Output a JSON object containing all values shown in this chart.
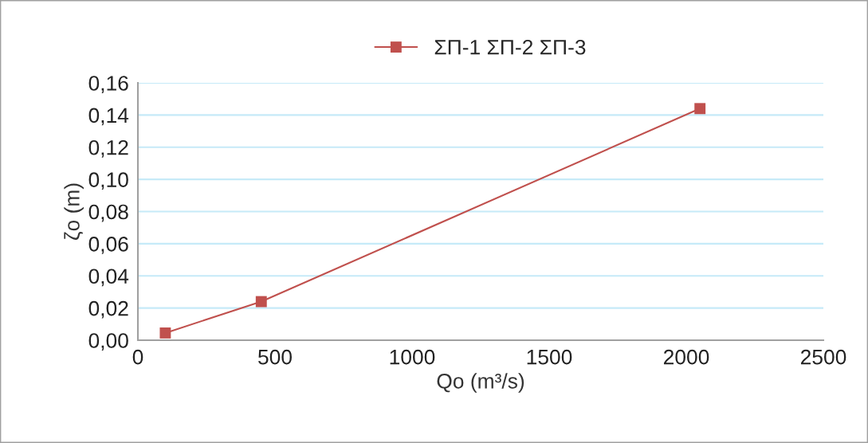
{
  "chart_data": {
    "type": "line",
    "xlabel": "Qo (m³/s)",
    "ylabel": "ζo (m)",
    "x": [
      100,
      450,
      2050
    ],
    "series": [
      {
        "name": "ΣΠ-1 ΣΠ-2 ΣΠ-3",
        "color": "#c0504d",
        "values": [
          0.0045,
          0.024,
          0.144
        ]
      }
    ],
    "xlim": [
      0,
      2500
    ],
    "xticks": [
      0,
      500,
      1000,
      1500,
      2000,
      2500
    ],
    "ylim": [
      0,
      0.16
    ],
    "yticks": [
      {
        "value": 0,
        "label": "0,00"
      },
      {
        "value": 0.02,
        "label": "0,02"
      },
      {
        "value": 0.04,
        "label": "0,04"
      },
      {
        "value": 0.06,
        "label": "0,06"
      },
      {
        "value": 0.08,
        "label": "0,08"
      },
      {
        "value": 0.1,
        "label": "0,10"
      },
      {
        "value": 0.12,
        "label": "0,12"
      },
      {
        "value": 0.14,
        "label": "0,14"
      },
      {
        "value": 0.16,
        "label": "0,16"
      }
    ],
    "grid": "y",
    "legend": "top",
    "marker": "square",
    "line_style": "solid"
  }
}
